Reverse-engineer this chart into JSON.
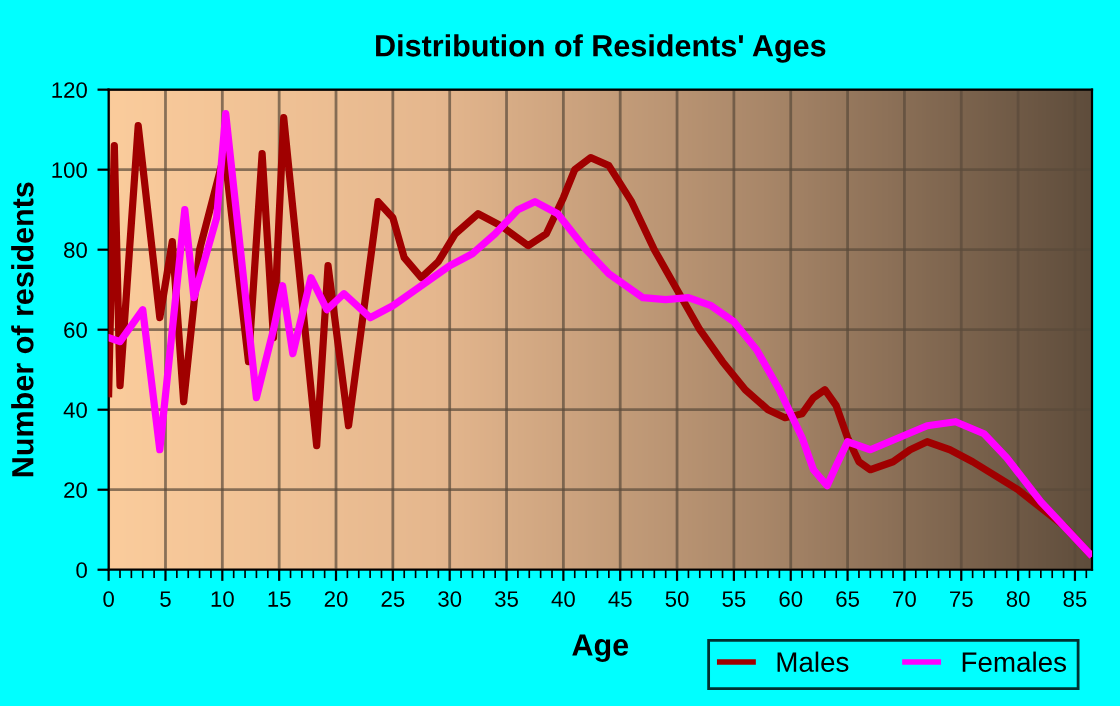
{
  "chart_data": {
    "type": "line",
    "title": "Distribution of Residents' Ages",
    "xlabel": "Age",
    "ylabel": "Number of residents",
    "xlim": [
      0,
      86.5
    ],
    "xticks": [
      0,
      5,
      10,
      15,
      20,
      25,
      30,
      35,
      40,
      45,
      50,
      55,
      60,
      65,
      70,
      75,
      80,
      85
    ],
    "ylim": [
      0,
      120
    ],
    "yticks": [
      0,
      20,
      40,
      60,
      80,
      100,
      120
    ],
    "grid": true,
    "legend": "bottom right",
    "marker": "none",
    "line_style": "solid",
    "series": [
      {
        "name": "Males",
        "color": "#a00000",
        "x": [
          0,
          0.5,
          1,
          2.6,
          4.5,
          5.6,
          6.6,
          8,
          10.2,
          12.3,
          13.5,
          14.5,
          15.4,
          18.3,
          19.3,
          21.1,
          23.7,
          25,
          26,
          27.5,
          29,
          30.5,
          32.5,
          34.5,
          36.9,
          38.5,
          40,
          41,
          42.4,
          44,
          46,
          48,
          50,
          52,
          54,
          56,
          58,
          59.5,
          61,
          62,
          63,
          64,
          65,
          66,
          67,
          69,
          70.5,
          72,
          74,
          76,
          80,
          84,
          86.3
        ],
        "values": [
          44,
          106,
          46,
          111,
          63,
          82,
          42,
          80,
          104,
          52,
          104,
          58,
          113,
          31,
          76,
          36,
          92,
          88,
          78,
          73,
          77,
          84,
          89,
          86,
          81,
          84,
          93,
          100,
          103,
          101,
          92,
          80,
          70,
          60,
          52,
          45,
          40,
          38,
          39,
          43,
          45,
          41,
          33,
          27,
          25,
          27,
          30,
          32,
          30,
          27,
          20,
          11,
          4
        ]
      },
      {
        "name": "Females",
        "color": "#ff00ff",
        "x": [
          0,
          1,
          3,
          4.5,
          6.7,
          7.5,
          9.5,
          10.3,
          13,
          14.5,
          15.3,
          16.2,
          17.8,
          19.2,
          20.7,
          23,
          25,
          28,
          30,
          32,
          34,
          36,
          37.5,
          39.5,
          42,
          44,
          45.5,
          47,
          49,
          51,
          53,
          55,
          57,
          59,
          61,
          62,
          63.2,
          64,
          65,
          66,
          67,
          69.5,
          72,
          74.5,
          77,
          79,
          82,
          86.3
        ],
        "values": [
          58,
          57,
          65,
          30,
          90,
          68,
          88,
          114,
          43,
          60,
          71,
          54,
          73,
          65,
          69,
          63,
          66,
          72,
          76,
          79,
          84,
          90,
          92,
          89,
          80,
          74,
          71,
          68,
          67.5,
          68,
          66,
          62,
          55,
          45,
          33,
          25,
          21,
          26,
          32,
          31,
          30,
          33,
          36,
          37,
          34,
          28,
          17,
          4
        ]
      }
    ]
  }
}
